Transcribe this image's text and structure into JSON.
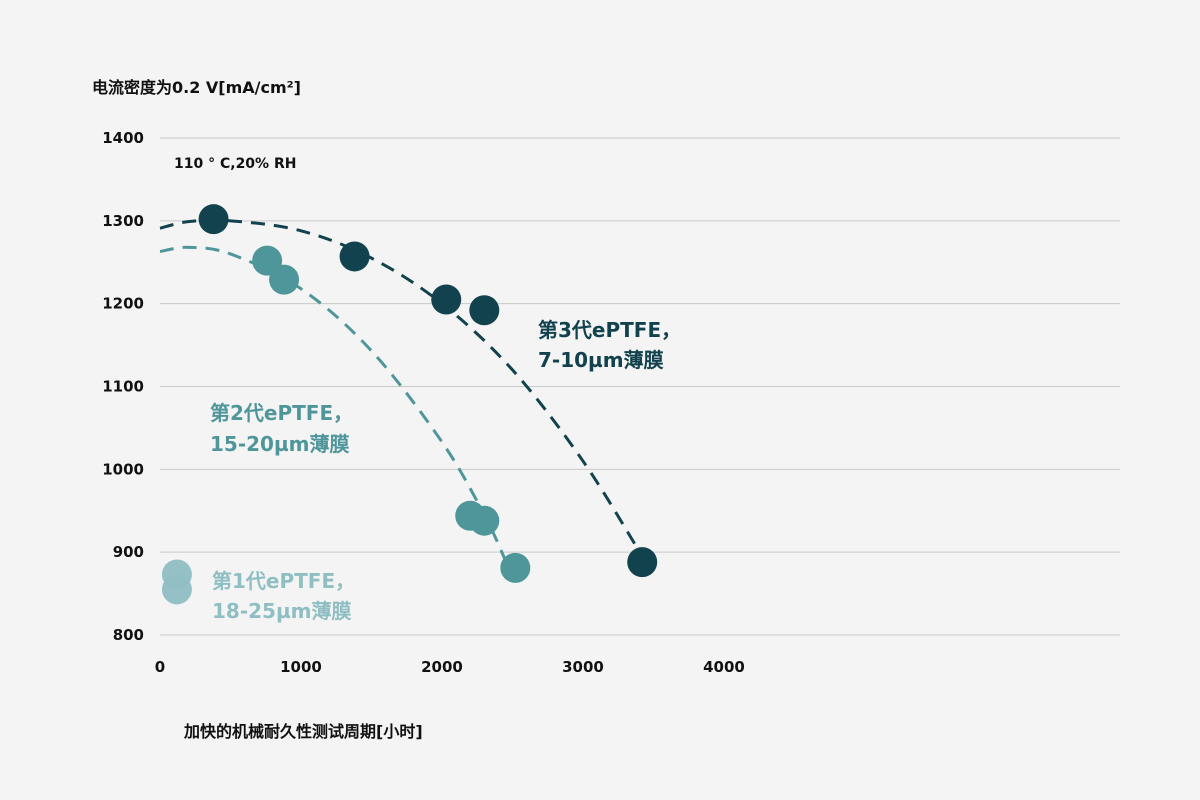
{
  "chart_data": {
    "type": "scatter",
    "title": "",
    "ylabel": "电流密度为0.2 V[mA/cm²]",
    "xlabel": "加快的机械耐久性测试周期[小时]",
    "annotation": "110 ° C,20% RH",
    "xlim": [
      0,
      4000
    ],
    "ylim": [
      800,
      1400
    ],
    "x_ticks": [
      "0",
      "1000",
      "2000",
      "3000",
      "4000"
    ],
    "y_ticks": [
      "800",
      "900",
      "1000",
      "1100",
      "1200",
      "1300",
      "1400"
    ],
    "grid": "horizontal",
    "series": [
      {
        "name": "第3代ePTFE，",
        "name_line2": "7-10µm薄膜",
        "color": "#12424d",
        "points": [
          [
            380,
            1302
          ],
          [
            1380,
            1257
          ],
          [
            2030,
            1205
          ],
          [
            2300,
            1192
          ],
          [
            3420,
            888
          ]
        ],
        "trend": [
          [
            0,
            1291
          ],
          [
            200,
            1299
          ],
          [
            500,
            1300
          ],
          [
            1000,
            1288
          ],
          [
            1500,
            1255
          ],
          [
            2000,
            1200
          ],
          [
            2500,
            1120
          ],
          [
            3000,
            1010
          ],
          [
            3420,
            895
          ]
        ]
      },
      {
        "name": "第2代ePTFE，",
        "name_line2": "15-20µm薄膜",
        "color": "#4f969a",
        "points": [
          [
            760,
            1252
          ],
          [
            880,
            1229
          ],
          [
            2200,
            944
          ],
          [
            2300,
            938
          ],
          [
            2520,
            881
          ]
        ],
        "trend": [
          [
            0,
            1263
          ],
          [
            200,
            1268
          ],
          [
            500,
            1260
          ],
          [
            1000,
            1218
          ],
          [
            1500,
            1143
          ],
          [
            2000,
            1033
          ],
          [
            2300,
            945
          ],
          [
            2450,
            890
          ]
        ]
      },
      {
        "name": "第1代ePTFE，",
        "name_line2": "18-25µm薄膜",
        "color": "#8fbec3",
        "points": [
          [
            120,
            873
          ],
          [
            120,
            855
          ]
        ],
        "trend": []
      }
    ]
  }
}
